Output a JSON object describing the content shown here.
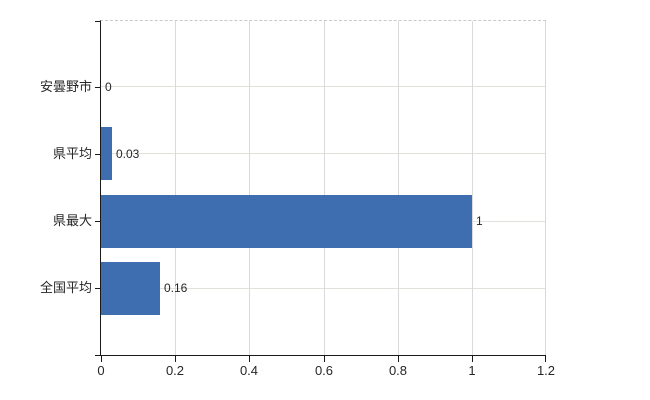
{
  "chart_data": {
    "type": "bar",
    "orientation": "horizontal",
    "title": "",
    "xlabel": "",
    "ylabel": "",
    "categories": [
      "安曇野市",
      "県平均",
      "県最大",
      "全国平均"
    ],
    "values": [
      0,
      0.03,
      1,
      0.16
    ],
    "value_labels": [
      "0",
      "0.03",
      "1",
      "0.16"
    ],
    "xlim": [
      0,
      1.2
    ],
    "x_ticks": [
      0,
      0.2,
      0.4,
      0.6,
      0.8,
      1,
      1.2
    ],
    "x_tick_labels": [
      "0",
      "0.2",
      "0.4",
      "0.6",
      "0.8",
      "1",
      "1.2"
    ],
    "grid": "on",
    "legend": "none",
    "colors": {
      "bar": "#3f6eb0",
      "axis": "#1a1a1a",
      "grid_vertical": "#d9d9d9",
      "grid_horizontal": "#dee2db",
      "frame_top": "#c9c9c9",
      "text": "#262626",
      "background": "#ffffff"
    }
  }
}
